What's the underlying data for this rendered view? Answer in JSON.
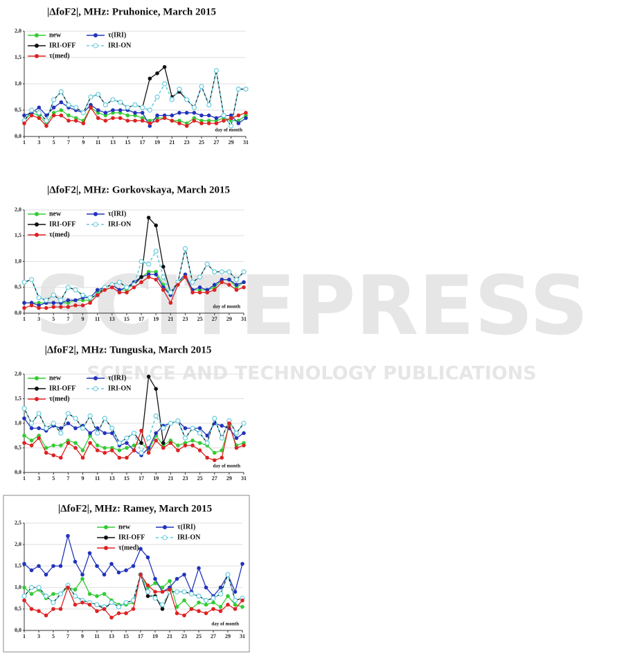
{
  "watermark": {
    "title": "SCITEPRESS",
    "subtitle": "SCIENCE AND TECHNOLOGY PUBLICATIONS"
  },
  "chart_data": [
    {
      "type": "line",
      "title": "|ΔfoF2|, MHz: Pruhonice, March 2015",
      "annotation": "day of month",
      "legend": "upper left",
      "grid": true,
      "x": [
        1,
        2,
        3,
        4,
        5,
        6,
        7,
        8,
        9,
        10,
        11,
        12,
        13,
        14,
        15,
        16,
        17,
        18,
        19,
        20,
        21,
        22,
        23,
        24,
        25,
        26,
        27,
        28,
        29,
        30,
        31
      ],
      "xlim": [
        1,
        31
      ],
      "xticks": [
        1,
        3,
        5,
        7,
        9,
        11,
        13,
        15,
        17,
        19,
        21,
        23,
        25,
        27,
        29,
        31
      ],
      "ylim": [
        0,
        2
      ],
      "yticks": [
        {
          "value": 0,
          "label": "0,0"
        },
        {
          "value": 0.5,
          "label": "0,5"
        },
        {
          "value": 1,
          "label": "1,0"
        },
        {
          "value": 1.5,
          "label": "1,5"
        },
        {
          "value": 2,
          "label": "2,0"
        }
      ],
      "series": [
        {
          "name": "new",
          "color": "#33cc33",
          "values": [
            0.3,
            0.45,
            0.4,
            0.25,
            0.45,
            0.5,
            0.4,
            0.35,
            0.3,
            0.55,
            0.45,
            0.4,
            0.45,
            0.45,
            0.4,
            0.4,
            0.35,
            0.3,
            0.35,
            0.35,
            0.3,
            0.3,
            0.25,
            0.35,
            0.3,
            0.3,
            0.3,
            0.35,
            0.3,
            0.3,
            0.4
          ]
        },
        {
          "name": "τ(IRI)",
          "color": "#2233bb",
          "values": [
            0.4,
            0.45,
            0.55,
            0.4,
            0.55,
            0.65,
            0.55,
            0.5,
            0.45,
            0.6,
            0.5,
            0.45,
            0.5,
            0.5,
            0.5,
            0.45,
            0.45,
            0.2,
            0.4,
            0.4,
            0.4,
            0.45,
            0.45,
            0.45,
            0.4,
            0.4,
            0.35,
            0.4,
            0.4,
            0.25,
            0.35
          ]
        },
        {
          "name": "IRI-OFF",
          "color": "#111111",
          "values": [
            0.3,
            0.5,
            0.45,
            0.3,
            0.7,
            0.85,
            0.6,
            0.55,
            0.45,
            0.75,
            0.8,
            0.6,
            0.7,
            0.65,
            0.55,
            0.6,
            0.55,
            1.1,
            1.2,
            1.32,
            0.75,
            0.85,
            0.7,
            0.55,
            0.95,
            0.6,
            1.25,
            0.4,
            0.2,
            0.9,
            0.9
          ]
        },
        {
          "name": "IRI-ON",
          "color": "#66ccdd",
          "dashed": true,
          "values": [
            0.3,
            0.5,
            0.45,
            0.3,
            0.7,
            0.85,
            0.6,
            0.55,
            0.45,
            0.75,
            0.8,
            0.6,
            0.7,
            0.65,
            0.55,
            0.6,
            0.55,
            0.5,
            0.75,
            1.0,
            0.7,
            0.9,
            0.7,
            0.55,
            0.95,
            0.6,
            1.25,
            0.4,
            0.2,
            0.9,
            0.9
          ]
        },
        {
          "name": "τ(med)",
          "color": "#dd2222",
          "values": [
            0.25,
            0.4,
            0.35,
            0.2,
            0.4,
            0.4,
            0.3,
            0.3,
            0.25,
            0.55,
            0.35,
            0.3,
            0.35,
            0.35,
            0.3,
            0.3,
            0.3,
            0.25,
            0.3,
            0.35,
            0.3,
            0.25,
            0.2,
            0.3,
            0.25,
            0.25,
            0.25,
            0.3,
            0.35,
            0.4,
            0.45
          ]
        }
      ]
    },
    {
      "type": "line",
      "title": "|ΔfoF2|, MHz: Gorkovskaya, March 2015",
      "annotation": "day of month",
      "legend": "upper left",
      "grid": true,
      "x": [
        1,
        2,
        3,
        4,
        5,
        6,
        7,
        8,
        9,
        10,
        11,
        12,
        13,
        14,
        15,
        16,
        17,
        18,
        19,
        20,
        21,
        22,
        23,
        24,
        25,
        26,
        27,
        28,
        29,
        30,
        31
      ],
      "xlim": [
        1,
        31
      ],
      "xticks": [
        1,
        3,
        5,
        7,
        9,
        11,
        13,
        15,
        17,
        19,
        21,
        23,
        25,
        27,
        29,
        31
      ],
      "ylim": [
        0,
        2
      ],
      "yticks": [
        {
          "value": 0,
          "label": "0,0"
        },
        {
          "value": 0.5,
          "label": "0,5"
        },
        {
          "value": 1,
          "label": "1,0"
        },
        {
          "value": 1.5,
          "label": "1,5"
        },
        {
          "value": 2,
          "label": "2,0"
        }
      ],
      "series": [
        {
          "name": "new",
          "color": "#33cc33",
          "values": [
            0.2,
            0.2,
            0.2,
            0.2,
            0.2,
            0.2,
            0.2,
            0.25,
            0.25,
            0.25,
            0.4,
            0.5,
            0.55,
            0.45,
            0.45,
            0.6,
            0.7,
            0.8,
            0.8,
            0.55,
            0.35,
            0.6,
            0.7,
            0.45,
            0.45,
            0.45,
            0.5,
            0.65,
            0.65,
            0.5,
            0.6
          ]
        },
        {
          "name": "τ(IRI)",
          "color": "#2233bb",
          "values": [
            0.2,
            0.2,
            0.15,
            0.2,
            0.2,
            0.2,
            0.25,
            0.25,
            0.3,
            0.3,
            0.45,
            0.5,
            0.55,
            0.45,
            0.5,
            0.6,
            0.7,
            0.75,
            0.75,
            0.5,
            0.35,
            0.6,
            0.75,
            0.45,
            0.5,
            0.45,
            0.55,
            0.65,
            0.65,
            0.55,
            0.6
          ]
        },
        {
          "name": "IRI-OFF",
          "color": "#111111",
          "values": [
            0.6,
            0.65,
            0.3,
            0.25,
            0.35,
            0.25,
            0.5,
            0.45,
            0.35,
            0.3,
            0.35,
            0.5,
            0.55,
            0.6,
            0.5,
            0.55,
            0.7,
            1.85,
            1.7,
            0.9,
            0.4,
            0.6,
            1.25,
            0.6,
            0.7,
            0.95,
            0.8,
            0.8,
            0.8,
            0.65,
            0.8
          ]
        },
        {
          "name": "IRI-ON",
          "color": "#66ccdd",
          "dashed": true,
          "values": [
            0.6,
            0.65,
            0.3,
            0.25,
            0.35,
            0.25,
            0.5,
            0.45,
            0.35,
            0.3,
            0.35,
            0.5,
            0.55,
            0.6,
            0.5,
            0.55,
            1.0,
            0.95,
            1.2,
            0.7,
            0.4,
            0.6,
            1.25,
            0.6,
            0.7,
            0.95,
            0.8,
            0.8,
            0.8,
            0.65,
            0.8
          ]
        },
        {
          "name": "τ(med)",
          "color": "#dd2222",
          "values": [
            0.1,
            0.15,
            0.1,
            0.1,
            0.12,
            0.12,
            0.12,
            0.15,
            0.15,
            0.2,
            0.35,
            0.45,
            0.5,
            0.4,
            0.4,
            0.5,
            0.6,
            0.7,
            0.65,
            0.45,
            0.2,
            0.55,
            0.7,
            0.4,
            0.4,
            0.4,
            0.45,
            0.6,
            0.55,
            0.45,
            0.5
          ]
        }
      ]
    },
    {
      "type": "line",
      "title": "|ΔfoF2|, MHz: Tunguska, March 2015",
      "annotation": "day of month",
      "legend": "upper left",
      "grid": true,
      "x": [
        1,
        2,
        3,
        4,
        5,
        6,
        7,
        8,
        9,
        10,
        11,
        12,
        13,
        14,
        15,
        16,
        17,
        18,
        19,
        20,
        21,
        22,
        23,
        24,
        25,
        26,
        27,
        28,
        29,
        30,
        31
      ],
      "xlim": [
        1,
        31
      ],
      "xticks": [
        1,
        3,
        5,
        7,
        9,
        11,
        13,
        15,
        17,
        19,
        21,
        23,
        25,
        27,
        29,
        31
      ],
      "ylim": [
        0,
        2
      ],
      "yticks": [
        {
          "value": 0,
          "label": "0,0"
        },
        {
          "value": 0.5,
          "label": "0,5"
        },
        {
          "value": 1,
          "label": "1,0"
        },
        {
          "value": 1.5,
          "label": "1,5"
        },
        {
          "value": 2,
          "label": "2,0"
        }
      ],
      "series": [
        {
          "name": "new",
          "color": "#33cc33",
          "values": [
            0.75,
            0.65,
            0.75,
            0.5,
            0.55,
            0.55,
            0.65,
            0.6,
            0.45,
            0.75,
            0.55,
            0.5,
            0.5,
            0.45,
            0.5,
            0.55,
            0.6,
            0.45,
            0.75,
            0.55,
            0.65,
            0.55,
            0.6,
            0.65,
            0.6,
            0.55,
            0.4,
            0.45,
            0.95,
            0.55,
            0.6
          ]
        },
        {
          "name": "τ(IRI)",
          "color": "#2233bb",
          "values": [
            1.1,
            0.9,
            0.9,
            0.85,
            0.95,
            0.9,
            1.0,
            0.9,
            0.95,
            0.8,
            0.9,
            0.8,
            0.8,
            0.55,
            0.6,
            0.45,
            0.35,
            0.5,
            0.8,
            0.95,
            1.0,
            1.05,
            0.9,
            0.9,
            0.9,
            0.75,
            1.0,
            0.95,
            0.9,
            0.7,
            0.8
          ]
        },
        {
          "name": "IRI-OFF",
          "color": "#111111",
          "values": [
            1.3,
            1.0,
            1.2,
            0.9,
            1.0,
            0.8,
            1.2,
            1.1,
            0.9,
            1.15,
            0.8,
            1.1,
            0.9,
            0.6,
            0.7,
            0.8,
            0.6,
            1.95,
            1.7,
            0.6,
            1.0,
            1.05,
            0.7,
            0.9,
            0.8,
            0.6,
            1.1,
            0.7,
            1.05,
            0.8,
            1.0
          ]
        },
        {
          "name": "IRI-ON",
          "color": "#66ccdd",
          "dashed": true,
          "values": [
            1.3,
            1.0,
            1.2,
            0.9,
            1.0,
            0.8,
            1.2,
            1.1,
            0.9,
            1.15,
            0.8,
            1.1,
            0.9,
            0.6,
            0.7,
            0.8,
            0.4,
            0.7,
            1.15,
            0.9,
            1.0,
            1.05,
            0.7,
            0.9,
            0.8,
            0.6,
            1.1,
            0.7,
            1.05,
            0.8,
            1.0
          ]
        },
        {
          "name": "τ(med)",
          "color": "#dd2222",
          "values": [
            0.6,
            0.55,
            0.7,
            0.4,
            0.35,
            0.3,
            0.6,
            0.5,
            0.3,
            0.6,
            0.45,
            0.4,
            0.45,
            0.3,
            0.3,
            0.45,
            0.85,
            0.4,
            0.65,
            0.5,
            0.6,
            0.45,
            0.55,
            0.55,
            0.45,
            0.3,
            0.25,
            0.3,
            1.0,
            0.5,
            0.55
          ]
        }
      ]
    },
    {
      "type": "line",
      "title": "|ΔfoF2|, MHz: Ramey, March 2015",
      "annotation": "day of month",
      "legend": "upper center",
      "grid": true,
      "border": true,
      "x": [
        1,
        2,
        3,
        4,
        5,
        6,
        7,
        8,
        9,
        10,
        11,
        12,
        13,
        14,
        15,
        16,
        17,
        18,
        19,
        20,
        21,
        22,
        23,
        24,
        25,
        26,
        27,
        28,
        29,
        30,
        31
      ],
      "xlim": [
        1,
        31
      ],
      "xticks": [
        1,
        3,
        5,
        7,
        9,
        11,
        13,
        15,
        17,
        19,
        21,
        23,
        25,
        27,
        29,
        31
      ],
      "ylim": [
        0,
        2.5
      ],
      "yticks": [
        {
          "value": 0,
          "label": "0,0"
        },
        {
          "value": 0.5,
          "label": "0,5"
        },
        {
          "value": 1,
          "label": "1,0"
        },
        {
          "value": 1.5,
          "label": "1,5"
        },
        {
          "value": 2,
          "label": "2,0"
        },
        {
          "value": 2.5,
          "label": "2,5"
        }
      ],
      "series": [
        {
          "name": "new",
          "color": "#33cc33",
          "values": [
            1.0,
            0.85,
            0.95,
            0.75,
            0.85,
            0.85,
            1.0,
            0.95,
            1.2,
            0.85,
            0.8,
            0.85,
            0.7,
            0.6,
            0.6,
            0.65,
            1.3,
            1.0,
            1.1,
            1.0,
            1.15,
            0.55,
            0.7,
            0.5,
            0.65,
            0.6,
            0.65,
            0.55,
            0.8,
            0.6,
            0.55
          ]
        },
        {
          "name": "τ(IRI)",
          "color": "#2233bb",
          "values": [
            1.55,
            1.4,
            1.5,
            1.3,
            1.5,
            1.5,
            2.2,
            1.6,
            1.3,
            1.8,
            1.5,
            1.3,
            1.55,
            1.35,
            1.4,
            1.5,
            1.9,
            1.7,
            1.2,
            0.9,
            1.0,
            1.2,
            1.3,
            0.9,
            1.45,
            1.0,
            0.8,
            1.0,
            1.3,
            0.9,
            1.55
          ]
        },
        {
          "name": "IRI-OFF",
          "color": "#111111",
          "values": [
            0.8,
            1.0,
            1.0,
            0.8,
            0.65,
            0.85,
            1.05,
            0.8,
            0.7,
            0.65,
            0.6,
            0.5,
            0.65,
            0.55,
            0.65,
            0.7,
            1.3,
            0.8,
            0.8,
            0.5,
            0.9,
            0.9,
            0.9,
            0.85,
            0.8,
            0.7,
            0.75,
            0.85,
            1.3,
            0.7,
            0.75
          ]
        },
        {
          "name": "IRI-ON",
          "color": "#66ccdd",
          "dashed": true,
          "values": [
            0.8,
            1.0,
            1.0,
            0.8,
            0.65,
            0.85,
            1.05,
            0.8,
            0.7,
            0.65,
            0.6,
            0.55,
            0.65,
            0.55,
            0.65,
            0.7,
            1.3,
            0.9,
            0.75,
            0.6,
            0.9,
            0.9,
            0.9,
            0.85,
            0.8,
            0.7,
            0.75,
            0.85,
            1.3,
            0.7,
            0.75
          ]
        },
        {
          "name": "τ(med)",
          "color": "#dd2222",
          "values": [
            0.7,
            0.5,
            0.45,
            0.35,
            0.5,
            0.5,
            1.0,
            0.6,
            0.65,
            0.6,
            0.45,
            0.5,
            0.3,
            0.4,
            0.4,
            0.5,
            1.3,
            1.05,
            0.9,
            0.9,
            0.95,
            0.4,
            0.35,
            0.5,
            0.45,
            0.4,
            0.5,
            0.45,
            0.6,
            0.5,
            0.7
          ]
        }
      ]
    }
  ]
}
